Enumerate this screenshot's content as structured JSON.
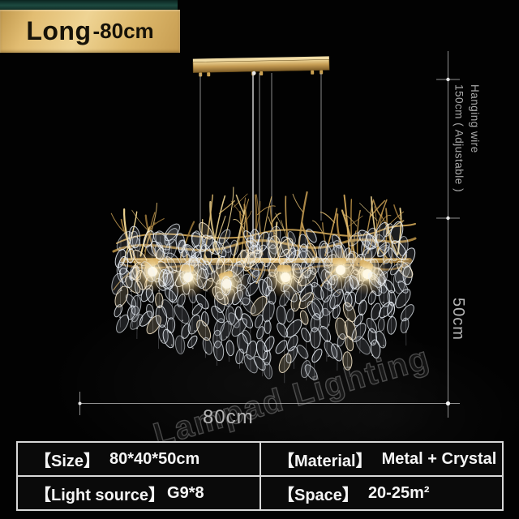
{
  "variant_label": {
    "name": "Long",
    "size": "-80cm"
  },
  "dimension_annotations": {
    "hanging_wire_line1": "Hanging wire",
    "hanging_wire_line2": "150cm ( Adjustable )",
    "height": "50cm",
    "length": "80cm"
  },
  "watermark": "Lampad Lighting",
  "spec_table": {
    "cells": [
      {
        "label": "【Size】",
        "value": "80*40*50cm"
      },
      {
        "label": "【Material】",
        "value": "Metal + Crystal"
      },
      {
        "label": "【Light source】",
        "value": "G9*8"
      },
      {
        "label": "【Space】",
        "value": "20-25m²"
      }
    ]
  },
  "colors": {
    "background": "#000000",
    "label_gold": "#ddb966",
    "label_teal_bar": "#16423a",
    "label_text": "#161208",
    "dimension_lines": "#909090",
    "dimension_text": "#b0b0b0",
    "table_border": "#d8d8d8",
    "table_background": "#0a0a0a",
    "table_text": "#f5f5f5",
    "branch_gold": "#c59c52",
    "bulb_glow": "#fff3cf"
  }
}
